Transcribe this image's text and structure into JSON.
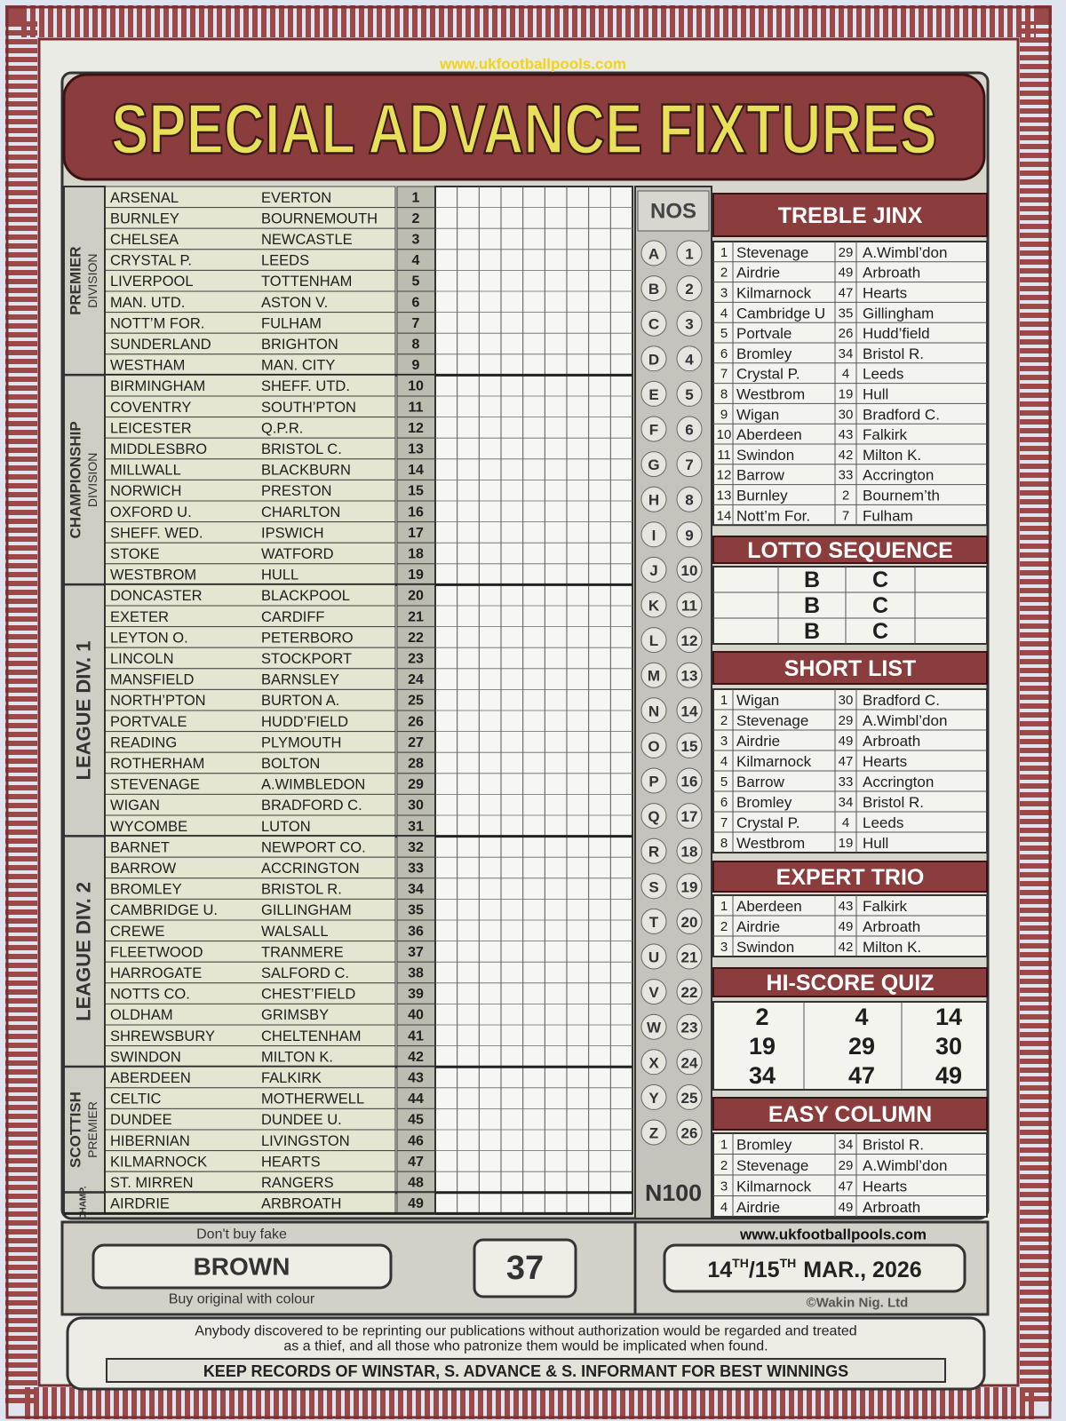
{
  "header": {
    "url": "www.ukfootballpools.com",
    "title": "SPECIAL ADVANCE FIXTURES"
  },
  "divisions": [
    {
      "name_lines": [
        "PREMIER",
        "DIVISION"
      ],
      "fixtures": [
        [
          1,
          "ARSENAL",
          "EVERTON"
        ],
        [
          2,
          "BURNLEY",
          "BOURNEMOUTH"
        ],
        [
          3,
          "CHELSEA",
          "NEWCASTLE"
        ],
        [
          4,
          "CRYSTAL P.",
          "LEEDS"
        ],
        [
          5,
          "LIVERPOOL",
          "TOTTENHAM"
        ],
        [
          6,
          "MAN. UTD.",
          "ASTON V."
        ],
        [
          7,
          "NOTT’M FOR.",
          "FULHAM"
        ],
        [
          8,
          "SUNDERLAND",
          "BRIGHTON"
        ],
        [
          9,
          "WESTHAM",
          "MAN. CITY"
        ]
      ]
    },
    {
      "name_lines": [
        "CHAMPIONSHIP",
        "DIVISION"
      ],
      "fixtures": [
        [
          10,
          "BIRMINGHAM",
          "SHEFF. UTD."
        ],
        [
          11,
          "COVENTRY",
          "SOUTH’PTON"
        ],
        [
          12,
          "LEICESTER",
          "Q.P.R."
        ],
        [
          13,
          "MIDDLESBRO",
          "BRISTOL C."
        ],
        [
          14,
          "MILLWALL",
          "BLACKBURN"
        ],
        [
          15,
          "NORWICH",
          "PRESTON"
        ],
        [
          16,
          "OXFORD U.",
          "CHARLTON"
        ],
        [
          17,
          "SHEFF. WED.",
          "IPSWICH"
        ],
        [
          18,
          "STOKE",
          "WATFORD"
        ],
        [
          19,
          "WESTBROM",
          "HULL"
        ]
      ]
    },
    {
      "name_lines": [
        "LEAGUE DIV. 1"
      ],
      "fixtures": [
        [
          20,
          "DONCASTER",
          "BLACKPOOL"
        ],
        [
          21,
          "EXETER",
          "CARDIFF"
        ],
        [
          22,
          "LEYTON O.",
          "PETERBORO"
        ],
        [
          23,
          "LINCOLN",
          "STOCKPORT"
        ],
        [
          24,
          "MANSFIELD",
          "BARNSLEY"
        ],
        [
          25,
          "NORTH’PTON",
          "BURTON A."
        ],
        [
          26,
          "PORTVALE",
          "HUDD’FIELD"
        ],
        [
          27,
          "READING",
          "PLYMOUTH"
        ],
        [
          28,
          "ROTHERHAM",
          "BOLTON"
        ],
        [
          29,
          "STEVENAGE",
          "A.WIMBLEDON"
        ],
        [
          30,
          "WIGAN",
          "BRADFORD C."
        ],
        [
          31,
          "WYCOMBE",
          "LUTON"
        ]
      ]
    },
    {
      "name_lines": [
        "LEAGUE DIV. 2"
      ],
      "fixtures": [
        [
          32,
          "BARNET",
          "NEWPORT CO."
        ],
        [
          33,
          "BARROW",
          "ACCRINGTON"
        ],
        [
          34,
          "BROMLEY",
          "BRISTOL R."
        ],
        [
          35,
          "CAMBRIDGE U.",
          "GILLINGHAM"
        ],
        [
          36,
          "CREWE",
          "WALSALL"
        ],
        [
          37,
          "FLEETWOOD",
          "TRANMERE"
        ],
        [
          38,
          "HARROGATE",
          "SALFORD C."
        ],
        [
          39,
          "NOTTS CO.",
          "CHEST’FIELD"
        ],
        [
          40,
          "OLDHAM",
          "GRIMSBY"
        ],
        [
          41,
          "SHREWSBURY",
          "CHELTENHAM"
        ],
        [
          42,
          "SWINDON",
          "MILTON K."
        ]
      ]
    },
    {
      "name_lines": [
        "SCOTTISH",
        "PREMIER"
      ],
      "fixtures": [
        [
          43,
          "ABERDEEN",
          "FALKIRK"
        ],
        [
          44,
          "CELTIC",
          "MOTHERWELL"
        ],
        [
          45,
          "DUNDEE",
          "DUNDEE U."
        ],
        [
          46,
          "HIBERNIAN",
          "LIVINGSTON"
        ],
        [
          47,
          "KILMARNOCK",
          "HEARTS"
        ],
        [
          48,
          "ST. MIRREN",
          "RANGERS"
        ]
      ]
    },
    {
      "name_lines": [
        "CHAMP."
      ],
      "fixtures": [
        [
          49,
          "AIRDRIE",
          "ARBROATH"
        ]
      ]
    }
  ],
  "nos": {
    "title": "NOS",
    "rows": [
      [
        "A",
        1
      ],
      [
        "B",
        2
      ],
      [
        "C",
        3
      ],
      [
        "D",
        4
      ],
      [
        "E",
        5
      ],
      [
        "F",
        6
      ],
      [
        "G",
        7
      ],
      [
        "H",
        8
      ],
      [
        "I",
        9
      ],
      [
        "J",
        10
      ],
      [
        "K",
        11
      ],
      [
        "L",
        12
      ],
      [
        "M",
        13
      ],
      [
        "N",
        14
      ],
      [
        "O",
        15
      ],
      [
        "P",
        16
      ],
      [
        "Q",
        17
      ],
      [
        "R",
        18
      ],
      [
        "S",
        19
      ],
      [
        "T",
        20
      ],
      [
        "U",
        21
      ],
      [
        "V",
        22
      ],
      [
        "W",
        23
      ],
      [
        "X",
        24
      ],
      [
        "Y",
        25
      ],
      [
        "Z",
        26
      ]
    ],
    "price": "N100"
  },
  "treble_jinx": {
    "title": "TREBLE JINX",
    "rows": [
      [
        1,
        "Stevenage",
        29,
        "A.Wimbl’don"
      ],
      [
        2,
        "Airdrie",
        49,
        "Arbroath"
      ],
      [
        3,
        "Kilmarnock",
        47,
        "Hearts"
      ],
      [
        4,
        "Cambridge U",
        35,
        "Gillingham"
      ],
      [
        5,
        "Portvale",
        26,
        "Hudd’field"
      ],
      [
        6,
        "Bromley",
        34,
        "Bristol R."
      ],
      [
        7,
        "Crystal P.",
        4,
        "Leeds"
      ],
      [
        8,
        "Westbrom",
        19,
        "Hull"
      ],
      [
        9,
        "Wigan",
        30,
        "Bradford C."
      ],
      [
        10,
        "Aberdeen",
        43,
        "Falkirk"
      ],
      [
        11,
        "Swindon",
        42,
        "Milton K."
      ],
      [
        12,
        "Barrow",
        33,
        "Accrington"
      ],
      [
        13,
        "Burnley",
        2,
        "Bournem’th"
      ],
      [
        14,
        "Nott’m For.",
        7,
        "Fulham"
      ]
    ]
  },
  "lotto_sequence": {
    "title": "LOTTO SEQUENCE",
    "rows": [
      [
        "B",
        "C"
      ],
      [
        "B",
        "C"
      ],
      [
        "B",
        "C"
      ]
    ]
  },
  "short_list": {
    "title": "SHORT LIST",
    "rows": [
      [
        1,
        "Wigan",
        30,
        "Bradford C."
      ],
      [
        2,
        "Stevenage",
        29,
        "A.Wimbl’don"
      ],
      [
        3,
        "Airdrie",
        49,
        "Arbroath"
      ],
      [
        4,
        "Kilmarnock",
        47,
        "Hearts"
      ],
      [
        5,
        "Barrow",
        33,
        "Accrington"
      ],
      [
        6,
        "Bromley",
        34,
        "Bristol R."
      ],
      [
        7,
        "Crystal P.",
        4,
        "Leeds"
      ],
      [
        8,
        "Westbrom",
        19,
        "Hull"
      ]
    ]
  },
  "expert_trio": {
    "title": "EXPERT TRIO",
    "rows": [
      [
        1,
        "Aberdeen",
        43,
        "Falkirk"
      ],
      [
        2,
        "Airdrie",
        49,
        "Arbroath"
      ],
      [
        3,
        "Swindon",
        42,
        "Milton K."
      ]
    ]
  },
  "hi_score_quiz": {
    "title": "HI-SCORE QUIZ",
    "rows": [
      [
        2,
        4,
        14
      ],
      [
        19,
        29,
        30
      ],
      [
        34,
        47,
        49
      ]
    ]
  },
  "easy_column": {
    "title": "EASY COLUMN",
    "rows": [
      [
        1,
        "Bromley",
        34,
        "Bristol R."
      ],
      [
        2,
        "Stevenage",
        29,
        "A.Wimbl’don"
      ],
      [
        3,
        "Kilmarnock",
        47,
        "Hearts"
      ],
      [
        4,
        "Airdrie",
        49,
        "Arbroath"
      ]
    ]
  },
  "footer": {
    "dont_buy": "Don't buy fake",
    "colour": "BROWN",
    "buy_original": "Buy original with colour",
    "issue": "37",
    "url": "www.ukfootballpools.com",
    "date": {
      "day1": "14",
      "sup1": "TH",
      "day2": "/15",
      "sup2": "TH",
      "rest": "MAR., 2026"
    },
    "copyright": "©Wakin Nig. Ltd"
  },
  "notice": {
    "lines": [
      "Anybody discovered to be reprinting our publications without authorization would be regarded and treated",
      "as a thief, and all those who patronize them would be implicated when found."
    ],
    "keep_records": "KEEP RECORDS OF WINSTAR, S. ADVANCE & S. INFORMANT FOR BEST WINNINGS"
  }
}
